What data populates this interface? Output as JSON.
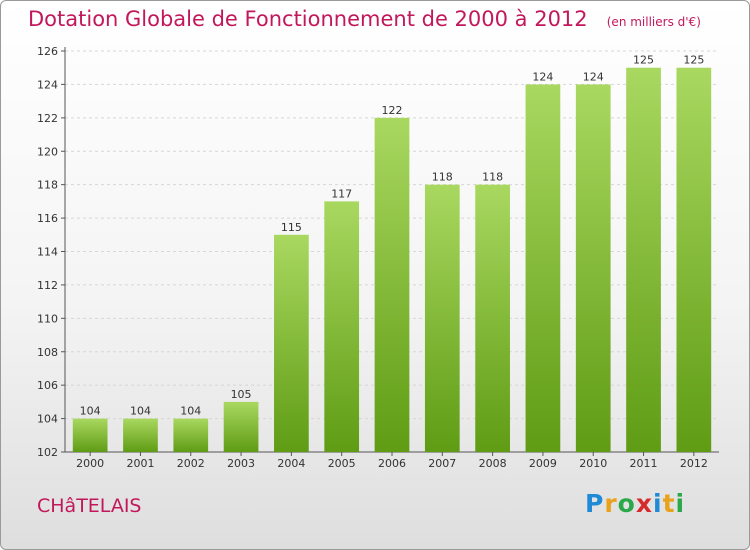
{
  "header": {
    "title": "Dotation Globale de Fonctionnement de 2000 à 2012",
    "unit": "(en milliers d'€)"
  },
  "footer": {
    "commune": "CHâTELAIS",
    "logo_letters": [
      {
        "char": "P",
        "color": "#1f8ad6"
      },
      {
        "char": "r",
        "color": "#e8a21c"
      },
      {
        "char": "o",
        "color": "#2ba84a"
      },
      {
        "char": "x",
        "color": "#d62b2b"
      },
      {
        "char": "i",
        "color": "#1f8ad6"
      },
      {
        "char": "t",
        "color": "#e8a21c"
      },
      {
        "char": "i",
        "color": "#2ba84a"
      }
    ]
  },
  "colors": {
    "bar_light": "#a9d860",
    "bar_dark": "#5f9c14",
    "title": "#c2185b"
  },
  "chart_data": {
    "type": "bar",
    "categories": [
      "2000",
      "2001",
      "2002",
      "2003",
      "2004",
      "2005",
      "2006",
      "2007",
      "2008",
      "2009",
      "2010",
      "2011",
      "2012"
    ],
    "values": [
      104,
      104,
      104,
      105,
      115,
      117,
      122,
      118,
      118,
      124,
      124,
      125,
      125
    ],
    "ylim": [
      102,
      126
    ],
    "yticks": [
      102,
      104,
      106,
      108,
      110,
      112,
      114,
      116,
      118,
      120,
      122,
      124,
      126
    ],
    "grid": true,
    "data_labels": true
  }
}
